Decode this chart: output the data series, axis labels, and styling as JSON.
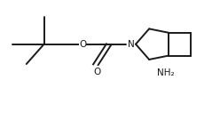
{
  "bg_color": "#ffffff",
  "line_color": "#1a1a1a",
  "line_width": 1.4,
  "font_size_label": 7.5,
  "layout": {
    "xlim": [
      0,
      1
    ],
    "ylim": [
      0,
      1
    ]
  }
}
